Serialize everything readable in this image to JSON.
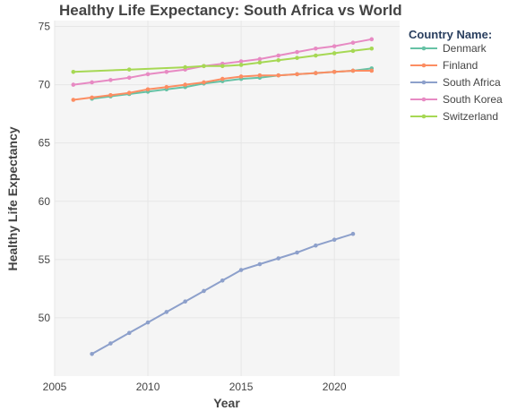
{
  "chart_data": {
    "type": "line",
    "title": "Healthy Life Expectancy: South Africa vs World",
    "xlabel": "Year",
    "ylabel": "Healthy Life Expectancy",
    "xlim": [
      2005,
      2023.5
    ],
    "ylim": [
      45,
      75.5
    ],
    "xticks": [
      2005,
      2010,
      2015,
      2020
    ],
    "yticks": [
      50,
      55,
      60,
      65,
      70,
      75
    ],
    "grid": true,
    "legend_title": "Country Name:",
    "legend_position": "top-right",
    "series": [
      {
        "name": "Denmark",
        "color": "#66c2a5",
        "x": [
          2007,
          2008,
          2009,
          2010,
          2011,
          2012,
          2013,
          2014,
          2015,
          2016,
          2017,
          2018,
          2019,
          2020,
          2021,
          2022
        ],
        "y": [
          68.8,
          69.0,
          69.2,
          69.4,
          69.6,
          69.8,
          70.1,
          70.3,
          70.5,
          70.6,
          70.8,
          70.9,
          71.0,
          71.1,
          71.2,
          71.4
        ]
      },
      {
        "name": "Finland",
        "color": "#fc8d62",
        "x": [
          2006,
          2007,
          2008,
          2009,
          2010,
          2011,
          2012,
          2013,
          2014,
          2015,
          2016,
          2017,
          2018,
          2019,
          2020,
          2021,
          2022
        ],
        "y": [
          68.7,
          68.9,
          69.1,
          69.3,
          69.6,
          69.8,
          70.0,
          70.2,
          70.5,
          70.7,
          70.8,
          70.8,
          70.9,
          71.0,
          71.1,
          71.2,
          71.2
        ]
      },
      {
        "name": "South Africa",
        "color": "#8da0cb",
        "x": [
          2007,
          2008,
          2009,
          2010,
          2011,
          2012,
          2013,
          2014,
          2015,
          2016,
          2017,
          2018,
          2019,
          2020,
          2021
        ],
        "y": [
          46.9,
          47.8,
          48.7,
          49.6,
          50.5,
          51.4,
          52.3,
          53.2,
          54.1,
          54.6,
          55.1,
          55.6,
          56.2,
          56.7,
          57.2
        ]
      },
      {
        "name": "South Korea",
        "color": "#e78ac3",
        "x": [
          2006,
          2007,
          2008,
          2009,
          2010,
          2011,
          2012,
          2013,
          2014,
          2015,
          2016,
          2017,
          2018,
          2019,
          2020,
          2021,
          2022
        ],
        "y": [
          70.0,
          70.2,
          70.4,
          70.6,
          70.9,
          71.1,
          71.3,
          71.6,
          71.8,
          72.0,
          72.2,
          72.5,
          72.8,
          73.1,
          73.3,
          73.6,
          73.9
        ]
      },
      {
        "name": "Switzerland",
        "color": "#a6d854",
        "x": [
          2006,
          2009,
          2012,
          2013,
          2014,
          2015,
          2016,
          2017,
          2018,
          2019,
          2020,
          2021,
          2022
        ],
        "y": [
          71.1,
          71.3,
          71.5,
          71.6,
          71.6,
          71.7,
          71.9,
          72.1,
          72.3,
          72.5,
          72.7,
          72.9,
          73.1
        ]
      }
    ]
  }
}
